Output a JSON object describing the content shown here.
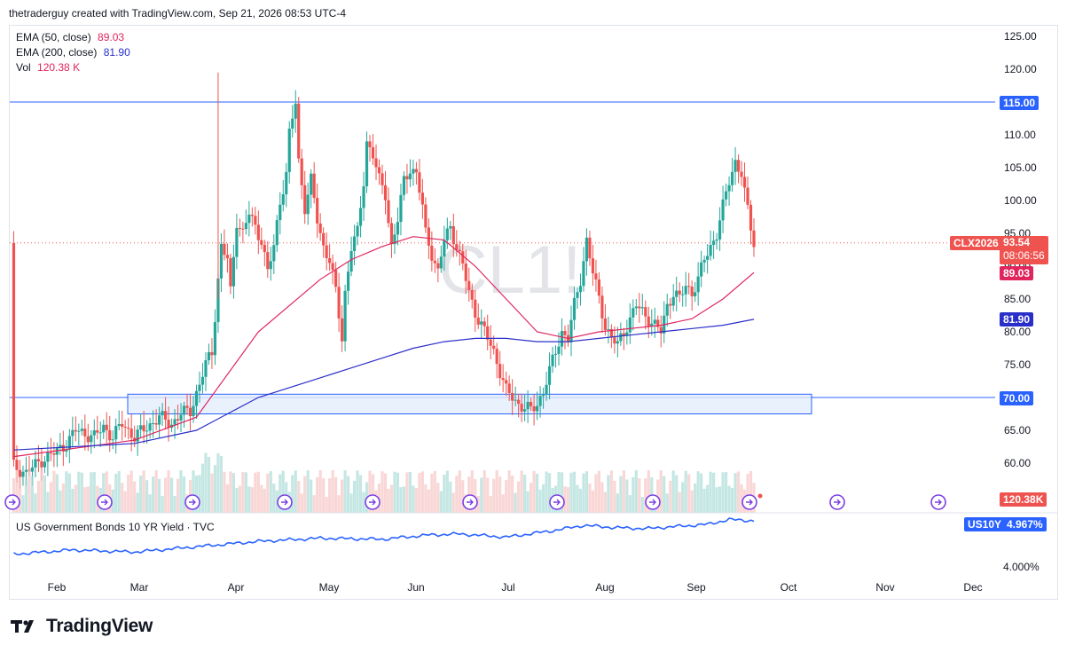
{
  "header": {
    "attribution": "thetraderguy created with TradingView.com, Sep 21, 2026 08:53 UTC-4"
  },
  "footer": {
    "brand": "TradingView"
  },
  "watermark": "CL1!",
  "legend": {
    "ema50": {
      "label": "EMA (50, close)",
      "value": "89.03",
      "color": "#e0245e"
    },
    "ema200": {
      "label": "EMA (200, close)",
      "value": "81.90",
      "color": "#2a2fc9"
    },
    "vol": {
      "label": "Vol",
      "value": "120.38 K",
      "color": "#e0245e"
    }
  },
  "price_tags": {
    "level115": "115.00",
    "symbol": "CLX2026",
    "last": "93.54",
    "countdown": "08:06:56",
    "ema50": "89.03",
    "ema200": "81.90",
    "level70": "70.00",
    "volume": "120.38K"
  },
  "yield_pane": {
    "title": "US Government Bonds 10 YR Yield · TVC",
    "symbol": "US10Y",
    "value": "4.967%",
    "axis_label": "4.000%"
  },
  "colors": {
    "up": "#26a69a",
    "down": "#ef5350",
    "line_blue": "#2962ff",
    "ema50": "#e0245e",
    "ema200": "#2a2fc9",
    "zone_fill": "#e3edfb"
  },
  "chart_data": {
    "type": "candlestick",
    "y_ticks": [
      125,
      120,
      115,
      110,
      105,
      100,
      95,
      90,
      85,
      80,
      75,
      70,
      65,
      60
    ],
    "ylim": [
      57.5,
      126.5
    ],
    "x_ticks": [
      "Feb",
      "Mar",
      "Apr",
      "May",
      "Jun",
      "Jul",
      "Aug",
      "Sep",
      "Oct",
      "Nov",
      "Dec"
    ],
    "horizontal_levels": [
      115,
      70
    ],
    "support_zone": [
      67.5,
      70.5
    ],
    "points": [
      [
        1,
        59.5
      ],
      [
        5,
        58.5
      ],
      [
        10,
        60.5
      ],
      [
        14,
        61.5
      ],
      [
        18,
        63
      ],
      [
        21,
        65
      ],
      [
        24,
        64.5
      ],
      [
        27,
        64
      ],
      [
        30,
        65.5
      ],
      [
        33,
        64
      ],
      [
        36,
        66
      ],
      [
        40,
        64
      ],
      [
        44,
        65.5
      ],
      [
        48,
        67
      ],
      [
        52,
        66
      ],
      [
        55,
        67.5
      ],
      [
        58,
        68
      ],
      [
        61,
        72
      ],
      [
        63,
        75
      ],
      [
        65,
        77
      ],
      [
        67,
        88
      ],
      [
        68,
        93
      ],
      [
        70,
        91
      ],
      [
        71,
        86
      ],
      [
        73,
        97
      ],
      [
        75,
        95
      ],
      [
        77,
        98
      ],
      [
        79,
        96
      ],
      [
        81,
        94
      ],
      [
        83,
        89
      ],
      [
        85,
        93
      ],
      [
        87,
        100
      ],
      [
        89,
        104
      ],
      [
        90,
        110
      ],
      [
        92,
        115
      ],
      [
        93,
        106
      ],
      [
        95,
        99
      ],
      [
        97,
        103
      ],
      [
        99,
        97
      ],
      [
        101,
        93
      ],
      [
        103,
        91
      ],
      [
        105,
        86
      ],
      [
        107,
        79
      ],
      [
        108,
        86
      ],
      [
        110,
        93
      ],
      [
        112,
        95
      ],
      [
        114,
        103
      ],
      [
        115,
        109
      ],
      [
        117,
        107
      ],
      [
        119,
        103
      ],
      [
        121,
        101
      ],
      [
        123,
        93
      ],
      [
        125,
        97
      ],
      [
        127,
        103
      ],
      [
        129,
        105
      ],
      [
        131,
        104
      ],
      [
        133,
        99
      ],
      [
        134,
        95
      ],
      [
        136,
        92
      ],
      [
        138,
        89
      ],
      [
        140,
        94
      ],
      [
        142,
        96
      ],
      [
        144,
        93
      ],
      [
        146,
        90
      ],
      [
        148,
        86
      ],
      [
        150,
        83
      ],
      [
        152,
        81
      ],
      [
        154,
        79
      ],
      [
        156,
        77
      ],
      [
        158,
        74
      ],
      [
        160,
        71
      ],
      [
        162,
        70
      ],
      [
        164,
        69
      ],
      [
        166,
        68.5
      ],
      [
        168,
        68
      ],
      [
        170,
        69
      ],
      [
        172,
        71
      ],
      [
        174,
        74
      ],
      [
        176,
        77
      ],
      [
        178,
        80
      ],
      [
        180,
        79
      ],
      [
        182,
        84
      ],
      [
        184,
        88
      ],
      [
        186,
        94
      ],
      [
        188,
        89
      ],
      [
        190,
        85
      ],
      [
        192,
        81
      ],
      [
        194,
        79
      ],
      [
        196,
        78
      ],
      [
        198,
        80
      ],
      [
        200,
        82
      ],
      [
        202,
        84
      ],
      [
        204,
        83
      ],
      [
        206,
        82
      ],
      [
        208,
        81
      ],
      [
        210,
        80
      ],
      [
        212,
        84
      ],
      [
        214,
        86
      ],
      [
        216,
        85
      ],
      [
        218,
        87
      ],
      [
        220,
        86
      ],
      [
        222,
        88
      ],
      [
        224,
        91
      ],
      [
        226,
        93
      ],
      [
        228,
        95
      ],
      [
        230,
        99
      ],
      [
        232,
        103
      ],
      [
        234,
        106
      ],
      [
        236,
        104
      ],
      [
        237,
        101
      ],
      [
        239,
        96
      ],
      [
        240,
        93.54
      ]
    ],
    "day_range": [
      0,
      240
    ],
    "ema50": [
      [
        1,
        61
      ],
      [
        40,
        63.5
      ],
      [
        60,
        67
      ],
      [
        80,
        80
      ],
      [
        100,
        88
      ],
      [
        110,
        91
      ],
      [
        120,
        93
      ],
      [
        130,
        94.5
      ],
      [
        140,
        94
      ],
      [
        150,
        90
      ],
      [
        160,
        85
      ],
      [
        170,
        80
      ],
      [
        180,
        79
      ],
      [
        190,
        80
      ],
      [
        200,
        80.5
      ],
      [
        210,
        81
      ],
      [
        220,
        82
      ],
      [
        230,
        85
      ],
      [
        240,
        89.03
      ]
    ],
    "ema200": [
      [
        1,
        62
      ],
      [
        40,
        63
      ],
      [
        60,
        65
      ],
      [
        80,
        70
      ],
      [
        100,
        73
      ],
      [
        110,
        74.5
      ],
      [
        120,
        76
      ],
      [
        130,
        77.5
      ],
      [
        140,
        78.5
      ],
      [
        150,
        79
      ],
      [
        160,
        79
      ],
      [
        170,
        78.5
      ],
      [
        180,
        78.5
      ],
      [
        190,
        79
      ],
      [
        200,
        79.5
      ],
      [
        210,
        80
      ],
      [
        220,
        80.5
      ],
      [
        230,
        81
      ],
      [
        240,
        81.9
      ]
    ],
    "yield": [
      [
        1,
        4.34
      ],
      [
        20,
        4.42
      ],
      [
        40,
        4.38
      ],
      [
        60,
        4.48
      ],
      [
        80,
        4.58
      ],
      [
        100,
        4.64
      ],
      [
        120,
        4.62
      ],
      [
        135,
        4.7
      ],
      [
        145,
        4.72
      ],
      [
        160,
        4.66
      ],
      [
        175,
        4.78
      ],
      [
        185,
        4.88
      ],
      [
        195,
        4.84
      ],
      [
        205,
        4.82
      ],
      [
        215,
        4.86
      ],
      [
        225,
        4.9
      ],
      [
        232,
        4.99
      ],
      [
        236,
        4.98
      ],
      [
        240,
        4.967
      ]
    ],
    "yield_ylim": [
      4.0,
      5.0
    ]
  }
}
